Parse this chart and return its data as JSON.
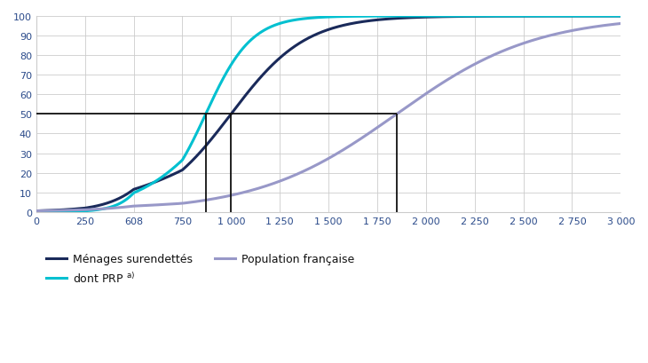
{
  "xtick_labels": [
    "0",
    "250",
    "608",
    "750",
    "1 000",
    "1 250",
    "1 500",
    "1 750",
    "2 000",
    "2 250",
    "2 500",
    "2 750",
    "3 000"
  ],
  "xtick_values_real": [
    0,
    250,
    608,
    750,
    1000,
    1250,
    1500,
    1750,
    2000,
    2250,
    2500,
    2750,
    3000
  ],
  "yticks": [
    0,
    10,
    20,
    30,
    40,
    50,
    60,
    70,
    80,
    90,
    100
  ],
  "color_menages": "#1a2a5a",
  "color_prp": "#00c0d0",
  "color_population": "#9898c8",
  "color_annotation": "#111111",
  "median_menages_real": 1000,
  "median_prp_real": 870,
  "median_population_real": 1850,
  "legend_menages": "Ménages surendettés",
  "legend_prp": "dont PRP",
  "legend_prp_superscript": "a)",
  "legend_population": "Population française",
  "background_color": "#ffffff",
  "grid_color": "#cccccc"
}
